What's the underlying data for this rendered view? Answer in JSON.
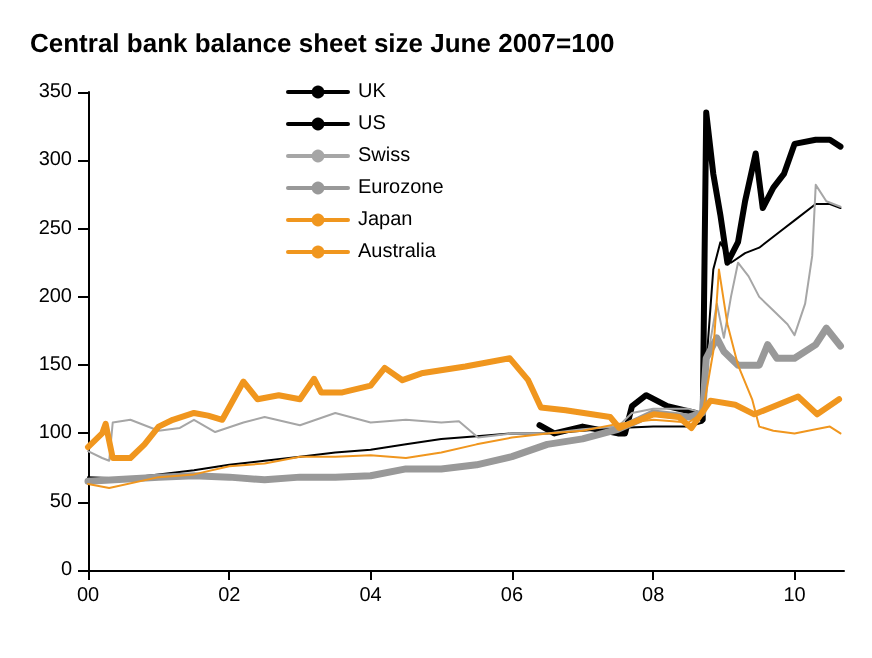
{
  "chart_data": {
    "type": "line",
    "title": "Central bank balance sheet size June 2007=100",
    "xlim": [
      0,
      10.7
    ],
    "xticks": [
      {
        "value": 0,
        "label": "00"
      },
      {
        "value": 2,
        "label": "02"
      },
      {
        "value": 4,
        "label": "04"
      },
      {
        "value": 6,
        "label": "06"
      },
      {
        "value": 8,
        "label": "08"
      },
      {
        "value": 10,
        "label": "10"
      }
    ],
    "ylim": [
      0,
      350
    ],
    "yticks": [
      0,
      50,
      100,
      150,
      200,
      250,
      300,
      350
    ],
    "grid": false,
    "legend": "top",
    "marker": "none",
    "line_style": "solid",
    "series": [
      {
        "name": "UK",
        "color": "#000000",
        "x": [
          6.39,
          6.6,
          7.0,
          7.5,
          7.6,
          7.7,
          7.9,
          8.2,
          8.6,
          8.7,
          8.75,
          8.85,
          8.95,
          9.05,
          9.2,
          9.3,
          9.45,
          9.55,
          9.7,
          9.85,
          10.0,
          10.3,
          10.5,
          10.65
        ],
        "values": [
          106,
          100,
          105,
          100,
          100,
          120,
          128,
          120,
          115,
          110,
          335,
          290,
          260,
          225,
          240,
          270,
          305,
          265,
          280,
          290,
          312,
          315,
          315,
          310
        ]
      },
      {
        "name": "US",
        "color": "#000000",
        "x": [
          0,
          0.5,
          1,
          1.5,
          2,
          2.5,
          3,
          3.5,
          4,
          4.5,
          5,
          5.5,
          6,
          6.5,
          7,
          7.5,
          8,
          8.5,
          8.7,
          8.75,
          8.85,
          8.95,
          9.1,
          9.3,
          9.5,
          9.8,
          10.0,
          10.3,
          10.5,
          10.65
        ],
        "values": [
          68,
          67,
          70,
          73,
          77,
          80,
          83,
          86,
          88,
          92,
          96,
          98,
          100,
          100,
          102,
          104,
          105,
          105,
          108,
          150,
          220,
          240,
          225,
          232,
          236,
          248,
          256,
          268,
          268,
          265
        ]
      },
      {
        "name": "Swiss",
        "color": "#a6a6a6",
        "x": [
          0,
          0.2,
          0.3,
          0.35,
          0.6,
          1.0,
          1.3,
          1.5,
          1.8,
          2.2,
          2.5,
          3.0,
          3.5,
          4.0,
          4.5,
          5.0,
          5.25,
          5.52,
          6.0,
          6.5,
          7.0,
          7.5,
          7.7,
          8.0,
          8.5,
          8.7,
          8.75,
          8.9,
          9.0,
          9.1,
          9.2,
          9.35,
          9.5,
          9.7,
          9.9,
          10.0,
          10.15,
          10.25,
          10.3,
          10.45,
          10.65
        ],
        "values": [
          87,
          82,
          80,
          108,
          110,
          102,
          104,
          110,
          101,
          108,
          112,
          106,
          115,
          108,
          110,
          108,
          109,
          97,
          100,
          100,
          103,
          105,
          115,
          118,
          118,
          115,
          150,
          195,
          170,
          200,
          225,
          215,
          200,
          190,
          180,
          172,
          195,
          230,
          282,
          270,
          266
        ]
      },
      {
        "name": "Eurozone",
        "color": "#999999",
        "x": [
          0,
          1,
          1.5,
          2,
          2.5,
          3,
          3.5,
          4,
          4.5,
          5,
          5.5,
          6,
          6.5,
          7,
          7.5,
          7.8,
          8,
          8.5,
          8.7,
          8.75,
          8.9,
          9.0,
          9.2,
          9.5,
          9.62,
          9.75,
          10.0,
          10.3,
          10.45,
          10.65
        ],
        "values": [
          65,
          68,
          69,
          68,
          66,
          68,
          68,
          69,
          74,
          74,
          77,
          83,
          92,
          96,
          103,
          110,
          115,
          112,
          115,
          155,
          170,
          160,
          150,
          150,
          165,
          155,
          155,
          165,
          177,
          164
        ]
      },
      {
        "name": "Japan",
        "color": "#f0961e",
        "x": [
          0,
          0.2,
          0.25,
          0.35,
          0.6,
          0.8,
          1.0,
          1.2,
          1.5,
          1.7,
          1.9,
          2.2,
          2.4,
          2.7,
          3.0,
          3.2,
          3.3,
          3.6,
          4.0,
          4.2,
          4.45,
          4.72,
          5.34,
          5.97,
          6.23,
          6.41,
          6.76,
          7.39,
          7.52,
          8.01,
          8.36,
          8.54,
          8.81,
          9.16,
          9.43,
          10.05,
          10.32,
          10.63
        ],
        "values": [
          90,
          100,
          107,
          82,
          82,
          92,
          105,
          110,
          115,
          113,
          110,
          138,
          125,
          128,
          125,
          140,
          130,
          130,
          135,
          148,
          139,
          144,
          149,
          155,
          139,
          119,
          117,
          112,
          104,
          114,
          112,
          104,
          124,
          121,
          114,
          127,
          114,
          125
        ]
      },
      {
        "name": "Australia",
        "color": "#f0961e",
        "x": [
          0,
          0.3,
          1.0,
          1.5,
          2.0,
          2.5,
          3.0,
          3.5,
          4.0,
          4.5,
          5.0,
          5.5,
          6.0,
          6.5,
          7,
          7.5,
          8,
          8.5,
          8.7,
          8.85,
          8.93,
          9.05,
          9.2,
          9.4,
          9.5,
          9.7,
          10,
          10.3,
          10.5,
          10.65
        ],
        "values": [
          63,
          60,
          68,
          70,
          76,
          78,
          83,
          83,
          84,
          82,
          86,
          92,
          97,
          100,
          102,
          107,
          110,
          108,
          115,
          160,
          220,
          180,
          150,
          125,
          105,
          102,
          100,
          103,
          105,
          100
        ]
      }
    ]
  }
}
